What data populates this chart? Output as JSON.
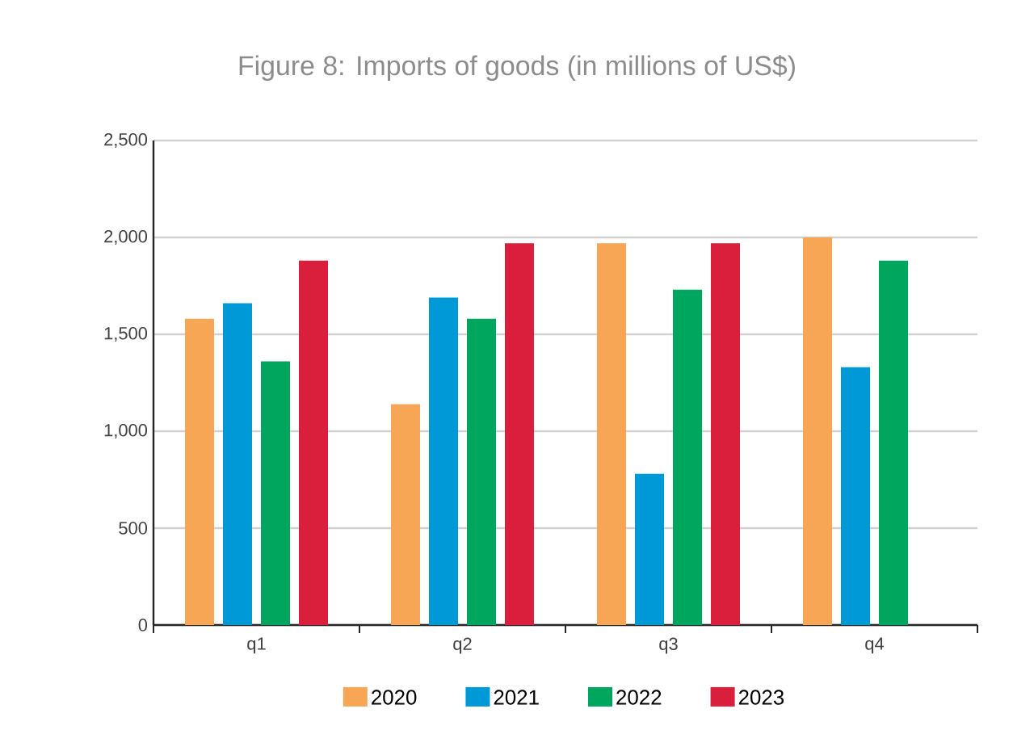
{
  "chart_data": {
    "type": "bar",
    "title": "Figure 8: Imports of goods (in millions of US$)",
    "categories": [
      "q1",
      "q2",
      "q3",
      "q4"
    ],
    "series": [
      {
        "name": "2020",
        "color": "#f7a655",
        "values": [
          1580,
          1140,
          1970,
          2000
        ]
      },
      {
        "name": "2021",
        "color": "#0099d8",
        "values": [
          1660,
          1690,
          780,
          1330
        ]
      },
      {
        "name": "2022",
        "color": "#00a65d",
        "values": [
          1360,
          1580,
          1730,
          1880
        ]
      },
      {
        "name": "2023",
        "color": "#da1f3d",
        "values": [
          1880,
          1970,
          1970,
          null
        ]
      }
    ],
    "ylim": [
      0,
      2500
    ],
    "yticks": [
      0,
      500,
      {
        "value": 1000,
        "label": "1,000"
      },
      {
        "value": 1500,
        "label": "1,500"
      },
      {
        "value": 2000,
        "label": "2,000"
      },
      {
        "value": 2500,
        "label": "2,500"
      }
    ],
    "grid": "y",
    "legend": "bottom"
  }
}
